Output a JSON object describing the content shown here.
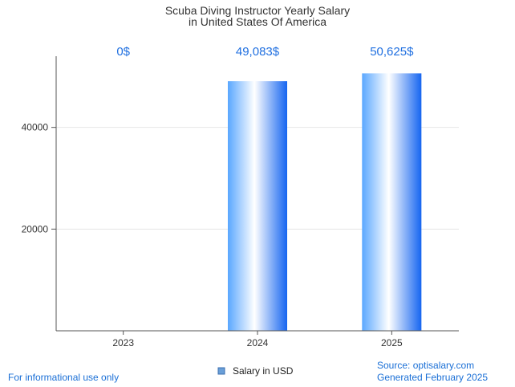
{
  "chart_data": {
    "type": "bar",
    "title_lines": [
      "Scuba Diving Instructor Yearly Salary",
      "in United States Of America"
    ],
    "categories": [
      "2023",
      "2024",
      "2025"
    ],
    "series": [
      {
        "name": "Salary in USD",
        "values": [
          0,
          49083,
          50625
        ]
      }
    ],
    "data_labels": [
      "0$",
      "49,083$",
      "50,625$"
    ],
    "y_ticks": [
      20000,
      40000
    ],
    "ylim": [
      0,
      54000
    ],
    "grid": true,
    "legend_position": "bottom-center",
    "bar_gradient": [
      "#5aa7ff",
      "#ffffff",
      "#1565f0"
    ]
  },
  "footer": {
    "left": "For informational use only",
    "source": "Source: optisalary.com",
    "generated": "Generated February 2025"
  }
}
